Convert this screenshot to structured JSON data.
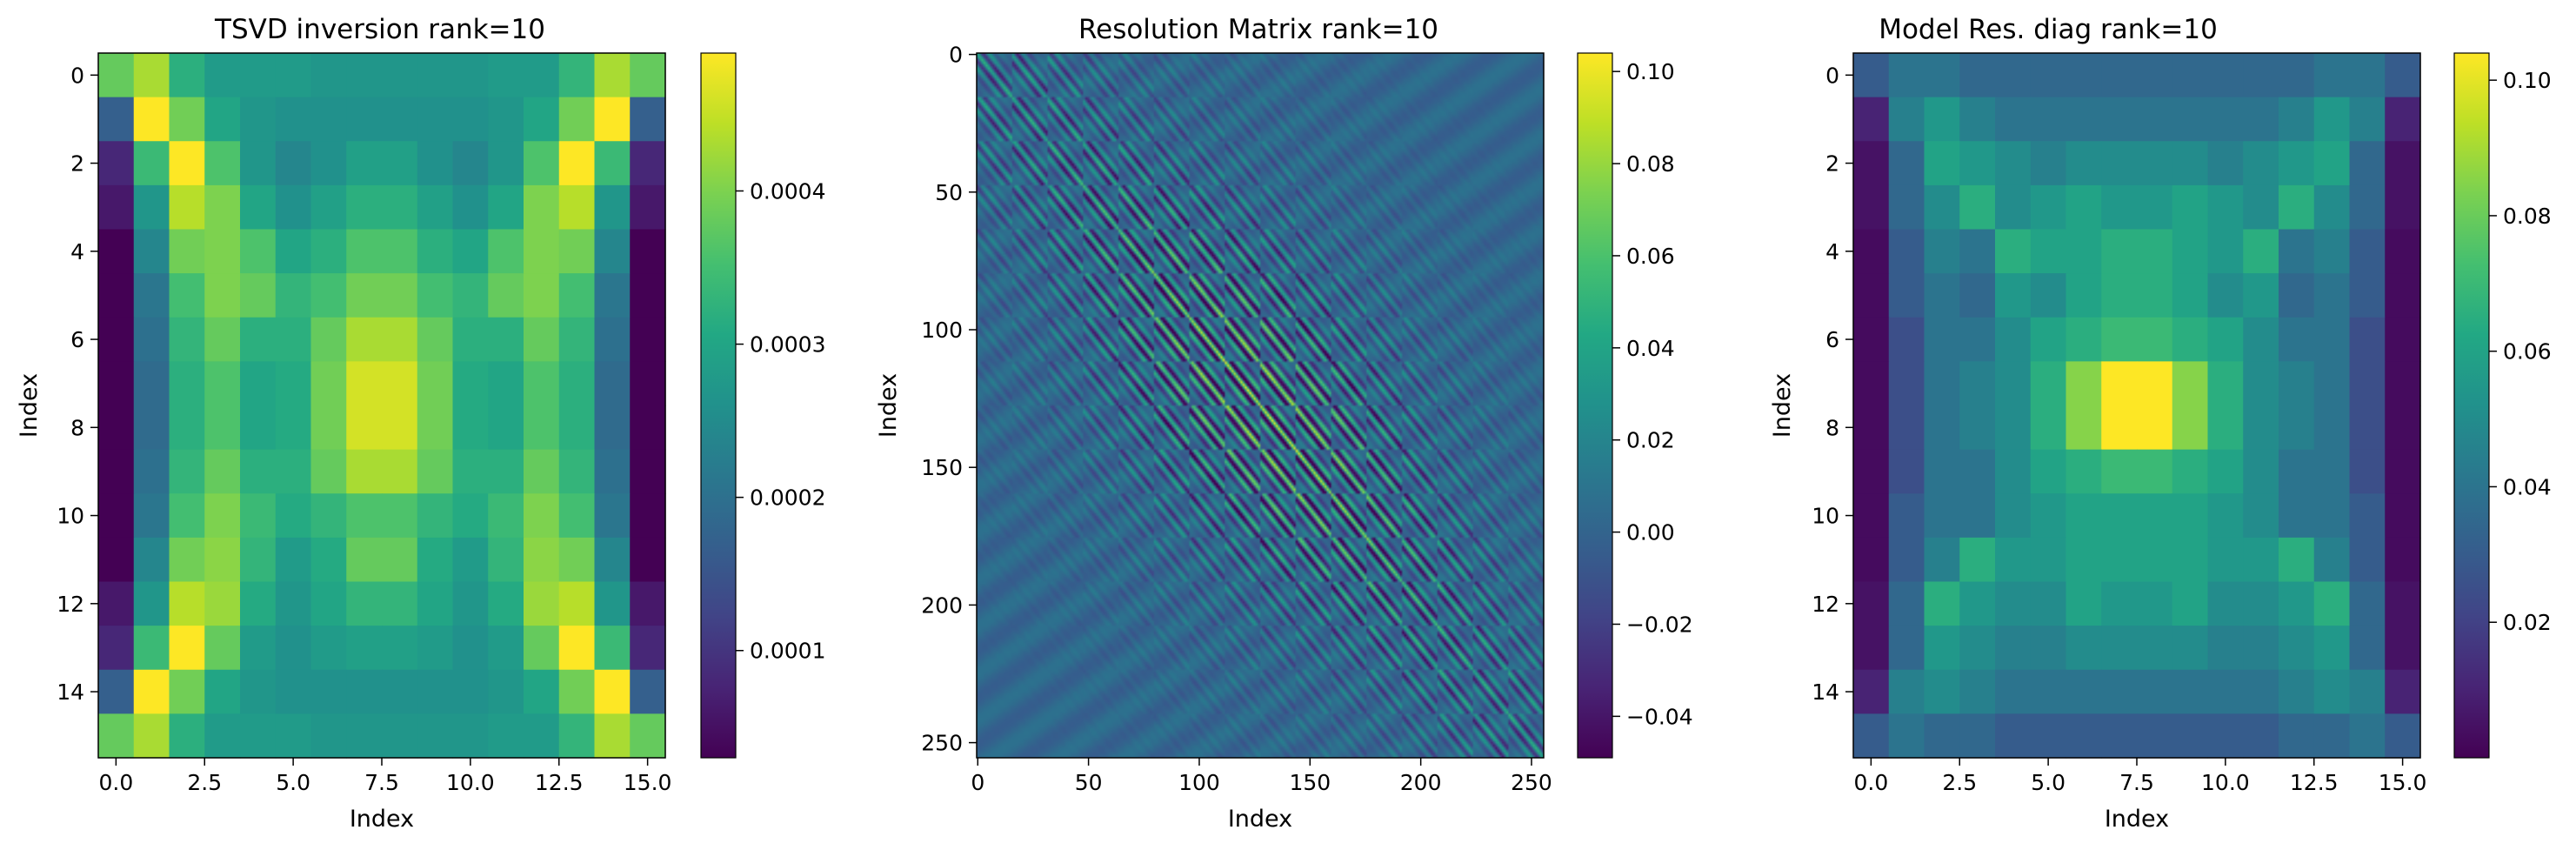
{
  "chart_data": [
    {
      "type": "heatmap",
      "title": "TSVD inversion rank=10",
      "xlabel": "Index",
      "ylabel": "Index",
      "xlim": [
        -0.5,
        15.5
      ],
      "ylim": [
        15.5,
        -0.5
      ],
      "xticks": [
        0.0,
        2.5,
        5.0,
        7.5,
        10.0,
        12.5,
        15.0
      ],
      "xtick_labels": [
        "0.0",
        "2.5",
        "5.0",
        "7.5",
        "10.0",
        "12.5",
        "15.0"
      ],
      "yticks": [
        0,
        2,
        4,
        6,
        8,
        10,
        12,
        14
      ],
      "ytick_labels": [
        "0",
        "2",
        "4",
        "6",
        "8",
        "10",
        "12",
        "14"
      ],
      "colormap": "viridis",
      "colorbar": {
        "vmin": 3e-05,
        "vmax": 0.00049,
        "ticks": [
          0.0001,
          0.0002,
          0.0003,
          0.0004
        ],
        "tick_labels": [
          "0.0001",
          "0.0002",
          "0.0003",
          "0.0004"
        ]
      },
      "values": [
        [
          0.00038,
          0.00043,
          0.00032,
          0.00028,
          0.00028,
          0.00028,
          0.00027,
          0.00027,
          0.00027,
          0.00027,
          0.00027,
          0.00028,
          0.00028,
          0.00033,
          0.00043,
          0.00038
        ],
        [
          0.00017,
          0.00049,
          0.00039,
          0.0003,
          0.00027,
          0.00026,
          0.00026,
          0.00026,
          0.00026,
          0.00026,
          0.00026,
          0.00027,
          0.0003,
          0.00039,
          0.00049,
          0.00017
        ],
        [
          8e-05,
          0.00034,
          0.00049,
          0.00036,
          0.00027,
          0.00024,
          0.00026,
          0.00029,
          0.00029,
          0.00026,
          0.00024,
          0.00027,
          0.00036,
          0.00049,
          0.00034,
          8e-05
        ],
        [
          6e-05,
          0.00027,
          0.00044,
          0.0004,
          0.0003,
          0.00026,
          0.00029,
          0.00032,
          0.00032,
          0.00029,
          0.00026,
          0.0003,
          0.0004,
          0.00044,
          0.00027,
          6e-05
        ],
        [
          3e-05,
          0.00024,
          0.00039,
          0.0004,
          0.00036,
          0.0003,
          0.00032,
          0.00036,
          0.00036,
          0.00032,
          0.0003,
          0.00036,
          0.0004,
          0.00039,
          0.00024,
          3e-05
        ],
        [
          3e-05,
          0.00021,
          0.00035,
          0.0004,
          0.00038,
          0.00033,
          0.00035,
          0.00039,
          0.00039,
          0.00035,
          0.00033,
          0.00038,
          0.0004,
          0.00035,
          0.00021,
          3e-05
        ],
        [
          3e-05,
          0.0002,
          0.00033,
          0.00038,
          0.00032,
          0.00032,
          0.00038,
          0.00043,
          0.00043,
          0.00038,
          0.00032,
          0.00032,
          0.00038,
          0.00033,
          0.0002,
          3e-05
        ],
        [
          3e-05,
          0.00019,
          0.00032,
          0.00036,
          0.0003,
          0.00031,
          0.00039,
          0.00046,
          0.00046,
          0.00039,
          0.00031,
          0.0003,
          0.00036,
          0.00032,
          0.00019,
          3e-05
        ],
        [
          3e-05,
          0.00019,
          0.00032,
          0.00036,
          0.0003,
          0.00031,
          0.00039,
          0.00046,
          0.00046,
          0.00039,
          0.00031,
          0.0003,
          0.00036,
          0.00032,
          0.00019,
          3e-05
        ],
        [
          3e-05,
          0.0002,
          0.00033,
          0.00038,
          0.00032,
          0.00032,
          0.00038,
          0.00043,
          0.00043,
          0.00038,
          0.00032,
          0.00032,
          0.00038,
          0.00033,
          0.0002,
          3e-05
        ],
        [
          3e-05,
          0.00021,
          0.00035,
          0.0004,
          0.00034,
          0.00031,
          0.00033,
          0.00036,
          0.00036,
          0.00033,
          0.00031,
          0.00034,
          0.0004,
          0.00035,
          0.00021,
          3e-05
        ],
        [
          3e-05,
          0.00024,
          0.00039,
          0.00041,
          0.00033,
          0.00028,
          0.00031,
          0.00038,
          0.00038,
          0.00031,
          0.00028,
          0.00033,
          0.00041,
          0.00039,
          0.00024,
          3e-05
        ],
        [
          6e-05,
          0.00027,
          0.00044,
          0.00042,
          0.00031,
          0.00027,
          0.0003,
          0.00033,
          0.00033,
          0.0003,
          0.00027,
          0.00031,
          0.00042,
          0.00044,
          0.00027,
          6e-05
        ],
        [
          8e-05,
          0.00034,
          0.00049,
          0.00038,
          0.00028,
          0.00026,
          0.00028,
          0.00029,
          0.00029,
          0.00028,
          0.00026,
          0.00028,
          0.00038,
          0.00049,
          0.00034,
          8e-05
        ],
        [
          0.00017,
          0.00049,
          0.00039,
          0.0003,
          0.00027,
          0.00026,
          0.00026,
          0.00026,
          0.00026,
          0.00026,
          0.00026,
          0.00027,
          0.0003,
          0.00039,
          0.00049,
          0.00017
        ],
        [
          0.00038,
          0.00043,
          0.00032,
          0.00028,
          0.00028,
          0.00028,
          0.00027,
          0.00027,
          0.00027,
          0.00027,
          0.00027,
          0.00028,
          0.00028,
          0.00033,
          0.00043,
          0.00038
        ]
      ]
    },
    {
      "type": "heatmap",
      "title": "Resolution Matrix rank=10",
      "xlabel": "Index",
      "ylabel": "Index",
      "xlim": [
        -0.5,
        255.5
      ],
      "ylim": [
        255.5,
        -0.5
      ],
      "xticks": [
        0,
        50,
        100,
        150,
        200,
        250
      ],
      "xtick_labels": [
        "0",
        "50",
        "100",
        "150",
        "200",
        "250"
      ],
      "yticks": [
        0,
        50,
        100,
        150,
        200,
        250
      ],
      "ytick_labels": [
        "0",
        "50",
        "100",
        "150",
        "200",
        "250"
      ],
      "colormap": "viridis",
      "matrix_size": 256,
      "colorbar": {
        "vmin": -0.049,
        "vmax": 0.104,
        "ticks": [
          -0.04,
          -0.02,
          0.0,
          0.02,
          0.04,
          0.06,
          0.08,
          0.1
        ],
        "tick_labels": [
          "−0.04",
          "−0.02",
          "0.00",
          "0.02",
          "0.04",
          "0.06",
          "0.08",
          "0.10"
        ]
      }
    },
    {
      "type": "heatmap",
      "title": "Model Res. diag rank=10",
      "xlabel": "Index",
      "ylabel": "Index",
      "xlim": [
        -0.5,
        15.5
      ],
      "ylim": [
        15.5,
        -0.5
      ],
      "xticks": [
        0.0,
        2.5,
        5.0,
        7.5,
        10.0,
        12.5,
        15.0
      ],
      "xtick_labels": [
        "0.0",
        "2.5",
        "5.0",
        "7.5",
        "10.0",
        "12.5",
        "15.0"
      ],
      "yticks": [
        0,
        2,
        4,
        6,
        8,
        10,
        12,
        14
      ],
      "ytick_labels": [
        "0",
        "2",
        "4",
        "6",
        "8",
        "10",
        "12",
        "14"
      ],
      "colormap": "viridis",
      "colorbar": {
        "vmin": 0.0,
        "vmax": 0.104,
        "ticks": [
          0.02,
          0.04,
          0.06,
          0.08,
          0.1
        ],
        "tick_labels": [
          "0.02",
          "0.04",
          "0.06",
          "0.08",
          "0.10"
        ]
      },
      "values": [
        [
          0.03,
          0.04,
          0.04,
          0.035,
          0.035,
          0.035,
          0.035,
          0.035,
          0.035,
          0.035,
          0.035,
          0.035,
          0.035,
          0.04,
          0.04,
          0.03
        ],
        [
          0.01,
          0.045,
          0.055,
          0.045,
          0.04,
          0.04,
          0.04,
          0.04,
          0.04,
          0.04,
          0.04,
          0.04,
          0.045,
          0.055,
          0.045,
          0.01
        ],
        [
          0.005,
          0.035,
          0.06,
          0.055,
          0.05,
          0.045,
          0.05,
          0.05,
          0.05,
          0.05,
          0.045,
          0.05,
          0.055,
          0.06,
          0.035,
          0.005
        ],
        [
          0.005,
          0.035,
          0.05,
          0.065,
          0.05,
          0.055,
          0.06,
          0.055,
          0.055,
          0.06,
          0.055,
          0.05,
          0.065,
          0.05,
          0.035,
          0.005
        ],
        [
          0.003,
          0.03,
          0.045,
          0.04,
          0.065,
          0.06,
          0.06,
          0.065,
          0.065,
          0.06,
          0.055,
          0.065,
          0.04,
          0.045,
          0.03,
          0.003
        ],
        [
          0.003,
          0.03,
          0.04,
          0.035,
          0.055,
          0.05,
          0.06,
          0.065,
          0.065,
          0.06,
          0.05,
          0.055,
          0.035,
          0.04,
          0.03,
          0.003
        ],
        [
          0.003,
          0.025,
          0.04,
          0.04,
          0.05,
          0.06,
          0.065,
          0.07,
          0.07,
          0.065,
          0.06,
          0.05,
          0.04,
          0.04,
          0.025,
          0.003
        ],
        [
          0.003,
          0.025,
          0.04,
          0.045,
          0.05,
          0.065,
          0.085,
          0.104,
          0.104,
          0.085,
          0.065,
          0.05,
          0.045,
          0.04,
          0.025,
          0.003
        ],
        [
          0.003,
          0.025,
          0.04,
          0.045,
          0.05,
          0.065,
          0.085,
          0.104,
          0.104,
          0.085,
          0.065,
          0.05,
          0.045,
          0.04,
          0.025,
          0.003
        ],
        [
          0.003,
          0.025,
          0.04,
          0.04,
          0.05,
          0.06,
          0.065,
          0.07,
          0.07,
          0.065,
          0.06,
          0.05,
          0.04,
          0.04,
          0.025,
          0.003
        ],
        [
          0.003,
          0.03,
          0.04,
          0.04,
          0.05,
          0.055,
          0.06,
          0.06,
          0.06,
          0.06,
          0.055,
          0.05,
          0.04,
          0.04,
          0.03,
          0.003
        ],
        [
          0.003,
          0.03,
          0.045,
          0.065,
          0.055,
          0.055,
          0.06,
          0.06,
          0.06,
          0.06,
          0.055,
          0.055,
          0.065,
          0.045,
          0.03,
          0.003
        ],
        [
          0.005,
          0.035,
          0.065,
          0.055,
          0.05,
          0.05,
          0.06,
          0.055,
          0.055,
          0.06,
          0.05,
          0.05,
          0.055,
          0.065,
          0.035,
          0.005
        ],
        [
          0.005,
          0.035,
          0.055,
          0.05,
          0.045,
          0.045,
          0.05,
          0.05,
          0.05,
          0.05,
          0.045,
          0.045,
          0.05,
          0.055,
          0.035,
          0.005
        ],
        [
          0.01,
          0.045,
          0.05,
          0.045,
          0.04,
          0.04,
          0.04,
          0.04,
          0.04,
          0.04,
          0.04,
          0.04,
          0.045,
          0.05,
          0.045,
          0.01
        ],
        [
          0.03,
          0.04,
          0.035,
          0.035,
          0.03,
          0.03,
          0.03,
          0.03,
          0.03,
          0.03,
          0.03,
          0.03,
          0.035,
          0.035,
          0.04,
          0.03
        ]
      ]
    }
  ]
}
